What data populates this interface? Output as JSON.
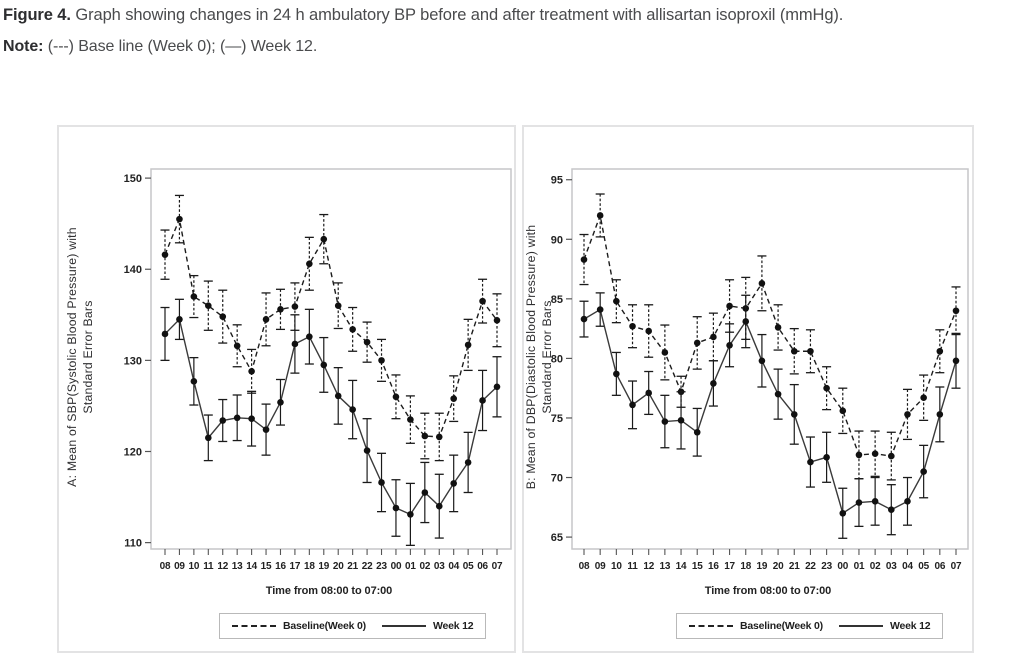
{
  "caption": {
    "figure_label": "Figure 4.",
    "figure_text": "Graph showing changes in 24 h ambulatory BP before and after treatment with allisartan isoproxil (mmHg).",
    "note_label": "Note:",
    "note_text": "(---) Base line (Week 0); (—) Week 12."
  },
  "legend": {
    "baseline_label": "Baseline(Week 0)",
    "week12_label": "Week 12"
  },
  "chart_data": [
    {
      "id": "sbp",
      "type": "line",
      "title": "A: Mean of SBP(Systolic Blood Pressure) with Standard Error Bars",
      "ylabel_line1": "A: Mean of SBP(Systolic Blood Pressure) with",
      "ylabel_line2": "Standard Error Bars",
      "xlabel": "Time from 08:00 to 07:00",
      "legend_position": "bottom",
      "grid": false,
      "categories": [
        "08",
        "09",
        "10",
        "11",
        "12",
        "13",
        "14",
        "15",
        "16",
        "17",
        "18",
        "19",
        "20",
        "21",
        "22",
        "23",
        "00",
        "01",
        "02",
        "03",
        "04",
        "05",
        "06",
        "07"
      ],
      "yticks": [
        110,
        120,
        130,
        140,
        150
      ],
      "ylim": [
        109.3,
        151.0
      ],
      "series": [
        {
          "name": "Baseline(Week 0)",
          "style": "dashed",
          "values": [
            141.6,
            145.5,
            137.0,
            136.0,
            134.8,
            131.6,
            128.8,
            134.5,
            135.6,
            135.9,
            140.6,
            143.3,
            136.0,
            133.4,
            132.0,
            130.0,
            126.0,
            123.5,
            121.7,
            121.6,
            125.8,
            131.7,
            136.5,
            134.4
          ],
          "se": [
            2.7,
            2.6,
            2.3,
            2.7,
            2.9,
            2.3,
            2.4,
            2.9,
            2.2,
            2.6,
            2.9,
            2.7,
            2.5,
            2.4,
            2.2,
            2.3,
            2.4,
            2.6,
            2.5,
            2.6,
            2.5,
            2.8,
            2.4,
            2.9
          ]
        },
        {
          "name": "Week 12",
          "style": "solid",
          "values": [
            132.9,
            134.5,
            127.7,
            121.5,
            123.4,
            123.7,
            123.6,
            122.4,
            125.4,
            131.8,
            132.6,
            129.5,
            126.1,
            124.6,
            120.1,
            116.6,
            113.8,
            113.1,
            115.5,
            114.0,
            116.5,
            118.8,
            125.6,
            127.1
          ],
          "se": [
            2.9,
            2.2,
            2.6,
            2.5,
            2.3,
            2.5,
            3.0,
            2.8,
            2.5,
            3.2,
            3.0,
            3.0,
            3.1,
            3.2,
            3.5,
            3.2,
            3.1,
            3.4,
            3.3,
            3.5,
            3.1,
            3.3,
            3.3,
            3.3
          ]
        }
      ]
    },
    {
      "id": "dbp",
      "type": "line",
      "title": "B: Mean of DBP(Diastolic Blood Pressure) with Standard Error Bars",
      "ylabel_line1": "B: Mean of DBP(Diastolic Blood Pressure) with",
      "ylabel_line2": "Standard Error Bars",
      "xlabel": "Time from 08:00 to 07:00",
      "legend_position": "bottom",
      "grid": false,
      "categories": [
        "08",
        "09",
        "10",
        "11",
        "12",
        "13",
        "14",
        "15",
        "16",
        "17",
        "18",
        "19",
        "20",
        "21",
        "22",
        "23",
        "00",
        "01",
        "02",
        "03",
        "04",
        "05",
        "06",
        "07"
      ],
      "yticks": [
        65,
        70,
        75,
        80,
        85,
        90,
        95
      ],
      "ylim": [
        64.0,
        95.9
      ],
      "series": [
        {
          "name": "Baseline(Week 0)",
          "style": "dashed",
          "values": [
            88.3,
            92.0,
            84.8,
            82.7,
            82.3,
            80.5,
            77.2,
            81.3,
            81.8,
            84.4,
            84.2,
            86.3,
            82.6,
            80.6,
            80.6,
            77.5,
            75.6,
            71.9,
            72.0,
            71.8,
            75.3,
            76.7,
            80.6,
            84.0
          ],
          "se": [
            2.1,
            1.8,
            1.8,
            1.8,
            2.2,
            2.3,
            1.3,
            2.2,
            2.0,
            2.2,
            2.6,
            2.3,
            1.9,
            1.9,
            1.8,
            1.8,
            1.9,
            2.0,
            1.9,
            2.0,
            2.1,
            1.9,
            1.8,
            2.0
          ]
        },
        {
          "name": "Week 12",
          "style": "solid",
          "values": [
            83.3,
            84.1,
            78.7,
            76.1,
            77.1,
            74.7,
            74.8,
            73.8,
            77.9,
            81.1,
            83.1,
            79.8,
            77.0,
            75.3,
            71.3,
            71.7,
            67.0,
            67.9,
            68.0,
            67.3,
            68.0,
            70.5,
            75.3,
            79.8
          ],
          "se": [
            1.5,
            1.4,
            1.8,
            2.0,
            1.8,
            2.2,
            2.4,
            2.0,
            1.9,
            1.8,
            2.2,
            2.2,
            2.1,
            2.5,
            2.1,
            2.1,
            2.1,
            2.0,
            2.0,
            2.1,
            2.0,
            2.2,
            2.3,
            2.3
          ]
        }
      ]
    }
  ]
}
